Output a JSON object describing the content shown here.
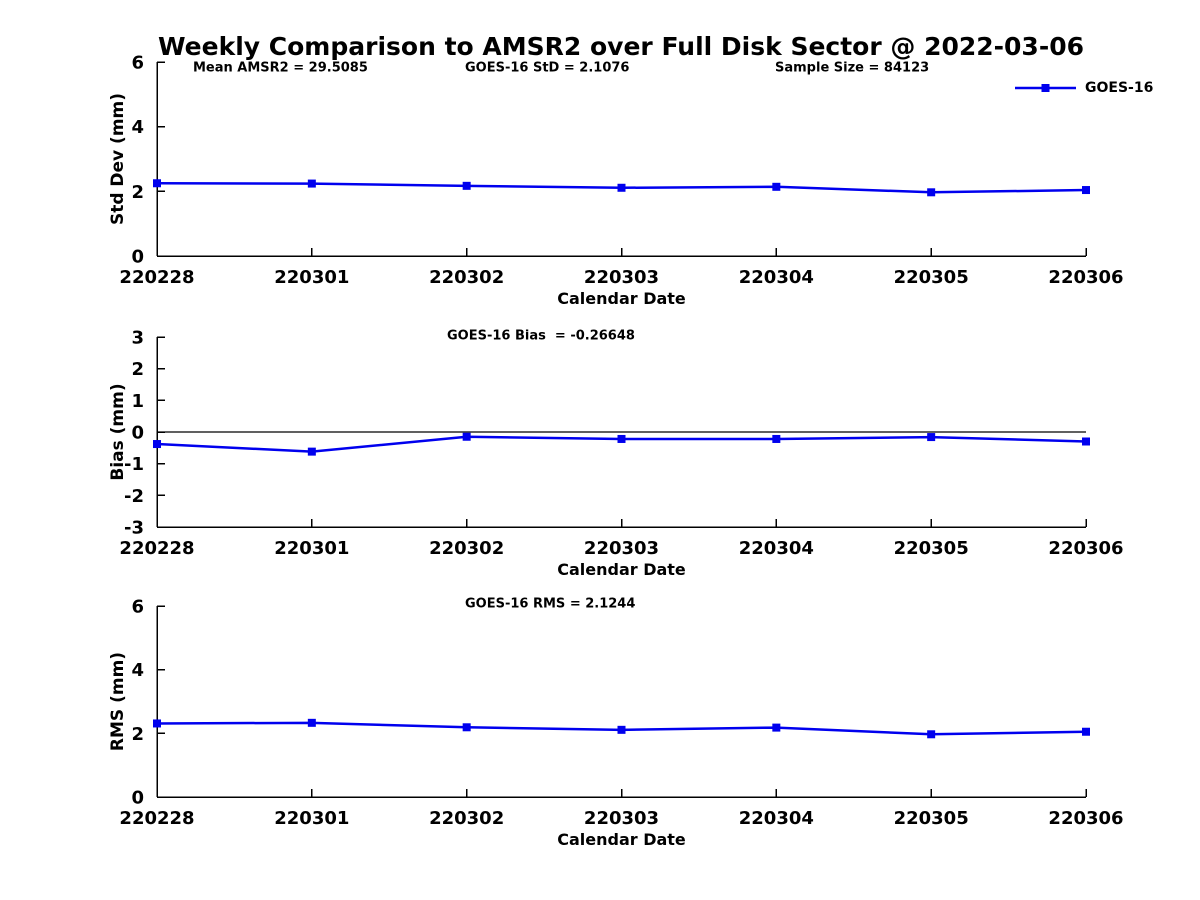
{
  "title": "Weekly Comparison to AMSR2 over Full Disk Sector @ 2022-03-06",
  "colors": {
    "line": "#0000ee",
    "axis": "#000000",
    "text": "#000000",
    "zero_line": "#000000",
    "background": "#ffffff"
  },
  "legend": {
    "label": "GOES-16",
    "position": "top-right",
    "marker": "filled-square"
  },
  "chart_data": [
    {
      "type": "line",
      "id": "std-dev",
      "categories": [
        "220228",
        "220301",
        "220302",
        "220303",
        "220304",
        "220305",
        "220306"
      ],
      "series": [
        {
          "name": "GOES-16",
          "values": [
            2.25,
            2.24,
            2.17,
            2.11,
            2.14,
            1.97,
            2.04
          ]
        }
      ],
      "xlabel": "Calendar Date",
      "ylabel": "Std Dev (mm)",
      "ylim": [
        0,
        6
      ],
      "yticks": [
        0,
        2,
        4,
        6
      ],
      "grid": false,
      "zero_line": false,
      "show_legend": true,
      "annotations": [
        {
          "text": "Mean AMSR2 = 29.5085",
          "x": 193
        },
        {
          "text": "GOES-16 StD = 2.1076",
          "x": 465
        },
        {
          "text": "Sample Size = 84123",
          "x": 775
        }
      ]
    },
    {
      "type": "line",
      "id": "bias",
      "categories": [
        "220228",
        "220301",
        "220302",
        "220303",
        "220304",
        "220305",
        "220306"
      ],
      "series": [
        {
          "name": "GOES-16",
          "values": [
            -0.38,
            -0.62,
            -0.15,
            -0.22,
            -0.22,
            -0.16,
            -0.3
          ]
        }
      ],
      "xlabel": "Calendar Date",
      "ylabel": "Bias (mm)",
      "ylim": [
        -3,
        3
      ],
      "yticks": [
        -3,
        -2,
        -1,
        0,
        1,
        2,
        3
      ],
      "grid": false,
      "zero_line": true,
      "show_legend": false,
      "annotations": [
        {
          "text": "GOES-16 Bias  = -0.26648",
          "x": 447
        }
      ]
    },
    {
      "type": "line",
      "id": "rms",
      "categories": [
        "220228",
        "220301",
        "220302",
        "220303",
        "220304",
        "220305",
        "220306"
      ],
      "series": [
        {
          "name": "GOES-16",
          "values": [
            2.31,
            2.33,
            2.19,
            2.11,
            2.18,
            1.97,
            2.05
          ]
        }
      ],
      "xlabel": "Calendar Date",
      "ylabel": "RMS (mm)",
      "ylim": [
        0,
        6
      ],
      "yticks": [
        0,
        2,
        4,
        6
      ],
      "grid": false,
      "zero_line": false,
      "show_legend": false,
      "annotations": [
        {
          "text": "GOES-16 RMS = 2.1244",
          "x": 465
        }
      ]
    }
  ]
}
